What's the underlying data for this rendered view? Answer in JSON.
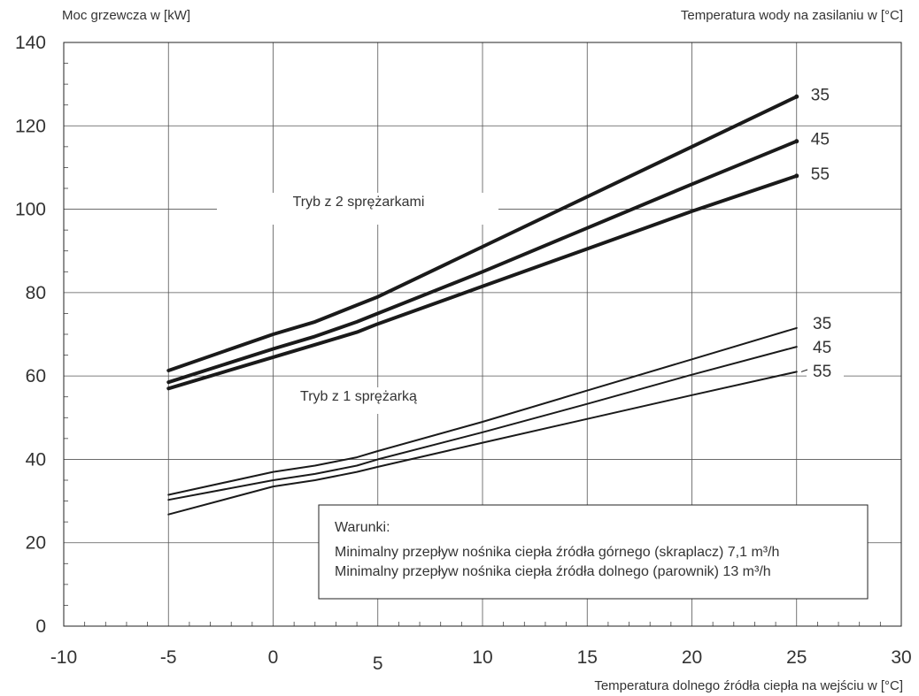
{
  "chart_data": {
    "type": "line",
    "ylabel": "Moc grzewcza w [kW]",
    "xlabel": "Temperatura dolnego źródła ciepła na wejściu w [°C]",
    "legend_title": "Temperatura wody na zasilaniu w [°C]",
    "xlim": [
      -10,
      30
    ],
    "ylim": [
      0,
      140
    ],
    "x_ticks": [
      "-10",
      "-5",
      "0",
      "5",
      "10",
      "15",
      "20",
      "25",
      "30"
    ],
    "y_ticks": [
      "0",
      "20",
      "40",
      "60",
      "80",
      "100",
      "120",
      "140"
    ],
    "grid": true,
    "groups": [
      {
        "label": "Tryb z 2 sprężarkami",
        "series": [
          {
            "name": "35",
            "points": [
              [
                -5,
                61.3
              ],
              [
                0,
                70
              ],
              [
                2,
                73
              ],
              [
                4,
                77
              ],
              [
                5,
                79
              ],
              [
                10,
                91
              ],
              [
                15,
                103
              ],
              [
                20,
                115
              ],
              [
                25,
                127
              ]
            ]
          },
          {
            "name": "45",
            "points": [
              [
                -5,
                58.5
              ],
              [
                0,
                66.5
              ],
              [
                2,
                69.5
              ],
              [
                4,
                73
              ],
              [
                5,
                75
              ],
              [
                10,
                85
              ],
              [
                15,
                95.5
              ],
              [
                20,
                106
              ],
              [
                25,
                116.3
              ]
            ]
          },
          {
            "name": "55",
            "points": [
              [
                -5,
                57
              ],
              [
                0,
                64.5
              ],
              [
                2,
                67.5
              ],
              [
                4,
                70.5
              ],
              [
                5,
                72.5
              ],
              [
                10,
                81.5
              ],
              [
                15,
                90.5
              ],
              [
                20,
                99.5
              ],
              [
                25,
                108
              ]
            ]
          }
        ]
      },
      {
        "label": "Tryb z 1 sprężarką",
        "series": [
          {
            "name": "35",
            "points": [
              [
                -5,
                31.5
              ],
              [
                0,
                37
              ],
              [
                2,
                38.5
              ],
              [
                4,
                40.5
              ],
              [
                5,
                42
              ],
              [
                10,
                49
              ],
              [
                15,
                56.5
              ],
              [
                20,
                64
              ],
              [
                25,
                71.5
              ]
            ]
          },
          {
            "name": "45",
            "points": [
              [
                -5,
                30.3
              ],
              [
                0,
                35
              ],
              [
                2,
                36.5
              ],
              [
                4,
                38.5
              ],
              [
                5,
                40
              ],
              [
                10,
                46.5
              ],
              [
                15,
                53.3
              ],
              [
                20,
                60.3
              ],
              [
                25,
                67
              ]
            ]
          },
          {
            "name": "55",
            "points": [
              [
                -5,
                26.8
              ],
              [
                0,
                33.5
              ],
              [
                2,
                35
              ],
              [
                4,
                37
              ],
              [
                5,
                38.2
              ],
              [
                10,
                44
              ],
              [
                15,
                49.7
              ],
              [
                20,
                55.4
              ],
              [
                25,
                61
              ]
            ]
          }
        ]
      }
    ],
    "conditions": {
      "title": "Warunki:",
      "lines": [
        "Minimalny przepływ nośnika ciepła źródła górnego (skraplacz) 7,1 m³/h",
        "Minimalny przepływ nośnika ciepła źródła dolnego (parownik) 13 m³/h"
      ]
    }
  }
}
